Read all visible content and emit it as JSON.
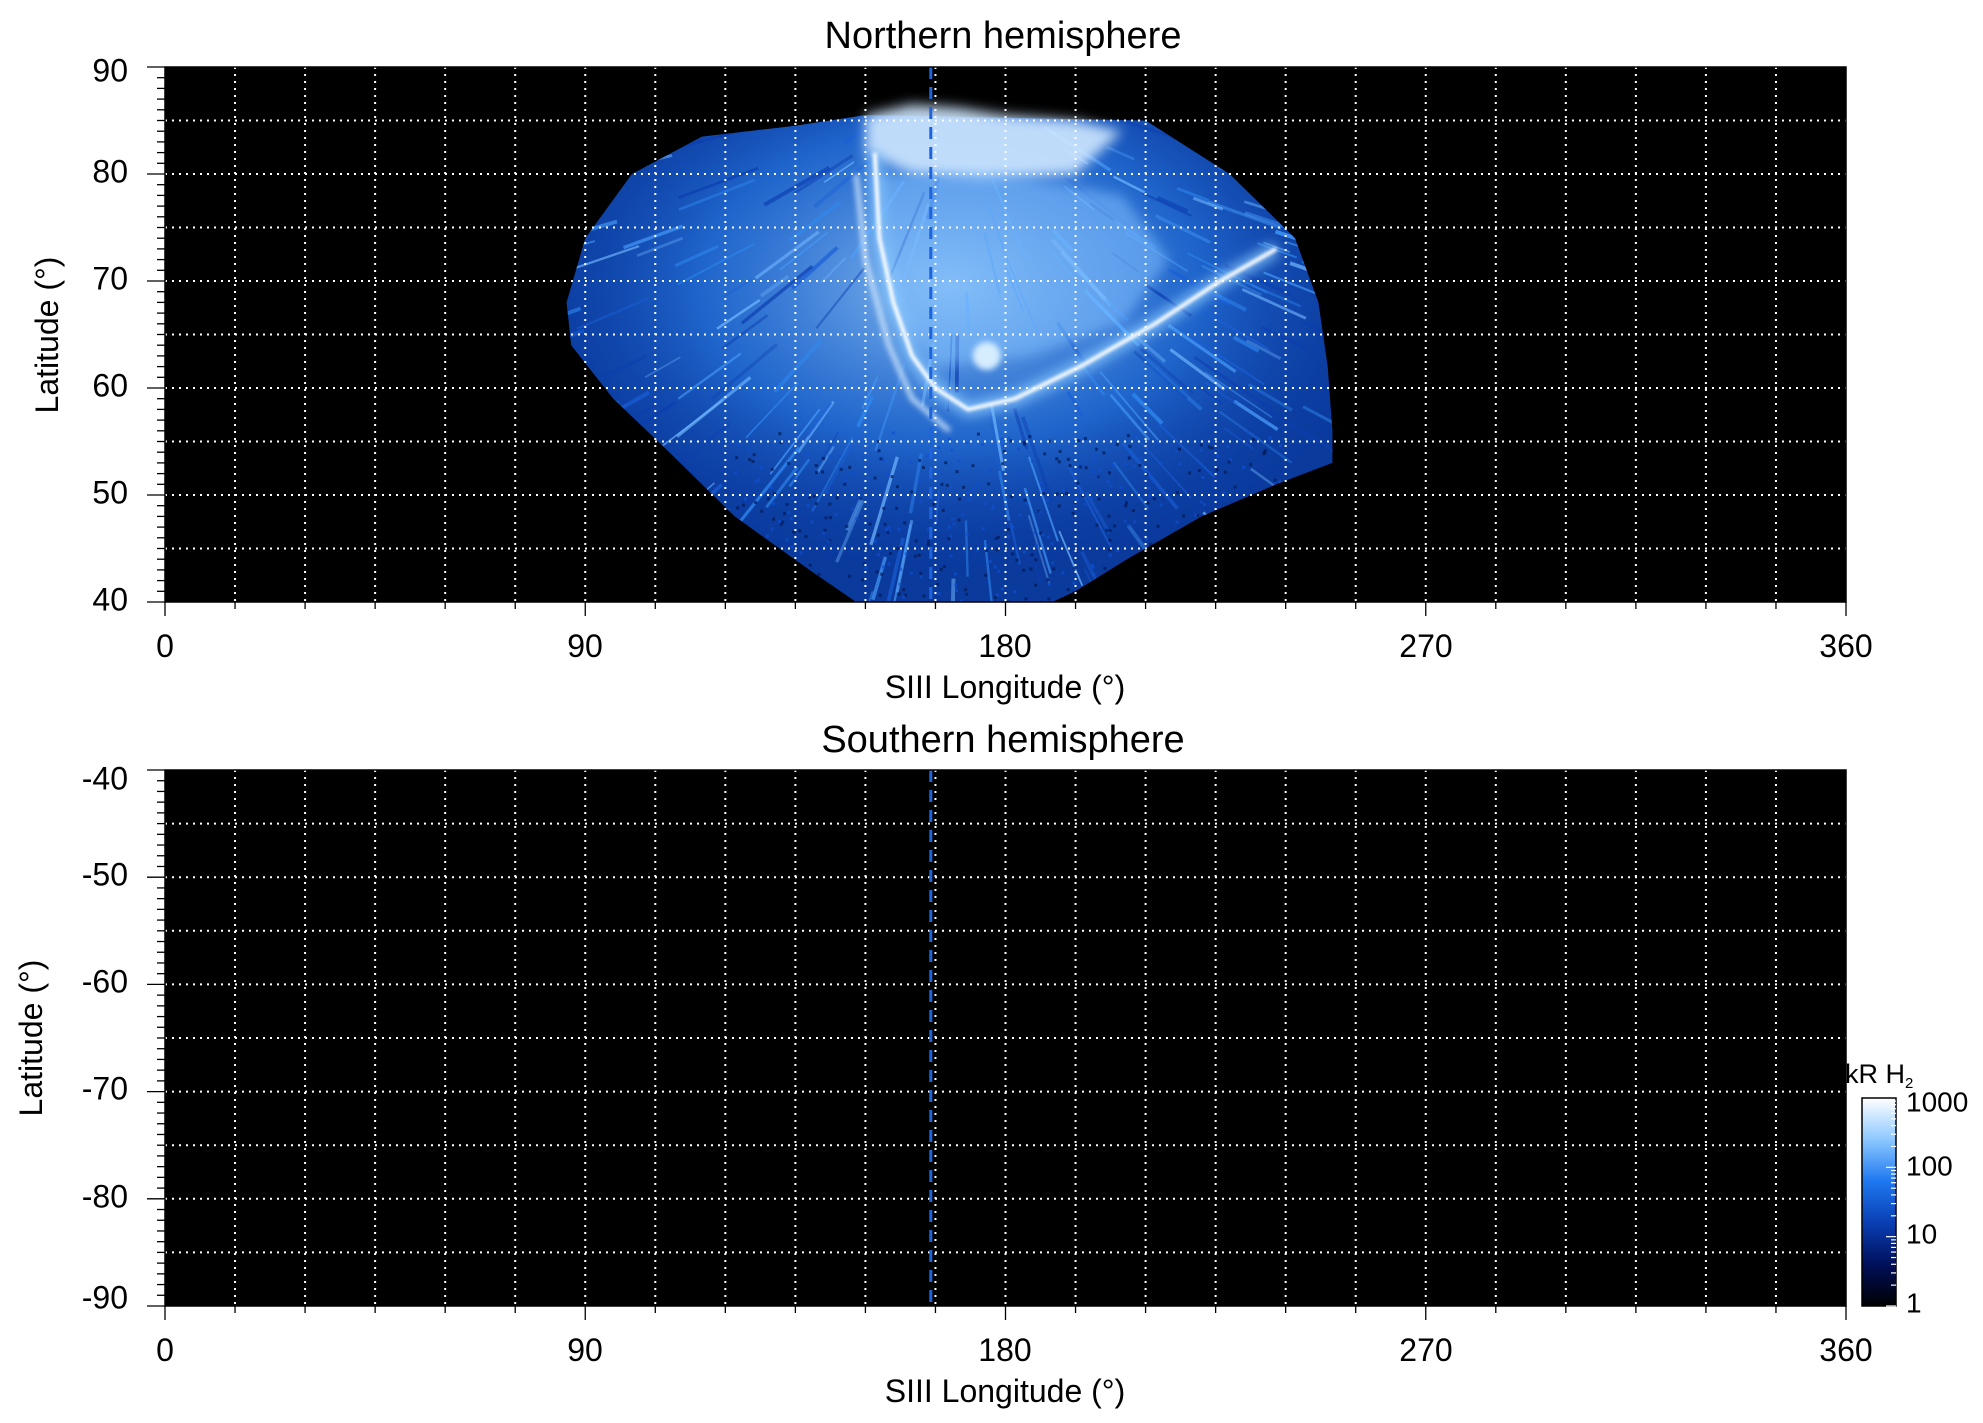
{
  "chart_data": [
    {
      "type": "heatmap",
      "title": "Northern hemisphere",
      "xlabel": "SIII Longitude (°)",
      "ylabel": "Latitude (°)",
      "xlim": [
        0,
        360
      ],
      "ylim": [
        40,
        90
      ],
      "x_ticks": [
        "0",
        "90",
        "180",
        "270",
        "360"
      ],
      "y_ticks": [
        "40",
        "50",
        "60",
        "70",
        "80",
        "90"
      ],
      "x_gridlines": [
        15,
        30,
        45,
        60,
        75,
        90,
        105,
        120,
        135,
        150,
        165,
        180,
        195,
        210,
        225,
        240,
        255,
        270,
        285,
        300,
        315,
        330,
        345
      ],
      "y_gridlines": [
        45,
        50,
        55,
        60,
        65,
        70,
        75,
        80,
        85
      ],
      "grid": true,
      "reference_line_longitude": 164,
      "emission_region": {
        "polar_cap_edge": [
          [
            150,
            85.5
          ],
          [
            160,
            86.5
          ],
          [
            170,
            86.2
          ],
          [
            180,
            85.5
          ],
          [
            195,
            85.0
          ],
          [
            210,
            85.0
          ]
        ],
        "outer_boundary": [
          [
            148,
            40
          ],
          [
            138,
            43
          ],
          [
            122,
            48
          ],
          [
            108,
            54
          ],
          [
            96,
            59
          ],
          [
            87,
            64
          ],
          [
            86,
            68
          ],
          [
            90,
            74
          ],
          [
            100,
            80
          ],
          [
            115,
            83.5
          ],
          [
            135,
            84.5
          ],
          [
            150,
            85.5
          ],
          [
            210,
            85.0
          ],
          [
            228,
            80
          ],
          [
            242,
            74
          ],
          [
            247,
            68
          ],
          [
            249,
            62
          ],
          [
            250,
            56
          ],
          [
            250,
            53
          ],
          [
            238,
            51
          ],
          [
            222,
            48
          ],
          [
            206,
            44
          ],
          [
            195,
            41
          ],
          [
            190,
            40
          ]
        ]
      },
      "main_auroral_oval": [
        [
          152,
          82
        ],
        [
          153,
          74
        ],
        [
          156,
          68
        ],
        [
          160,
          63
        ],
        [
          165,
          60
        ],
        [
          172,
          58
        ],
        [
          182,
          59
        ],
        [
          196,
          62
        ],
        [
          212,
          66
        ],
        [
          226,
          70
        ],
        [
          238,
          73
        ]
      ],
      "secondary_arc": [
        [
          148,
          80
        ],
        [
          150,
          72
        ],
        [
          155,
          64
        ],
        [
          160,
          59
        ],
        [
          168,
          56
        ]
      ]
    },
    {
      "type": "heatmap",
      "title": "Southern hemisphere",
      "xlabel": "SIII Longitude (°)",
      "ylabel": "Latitude (°)",
      "xlim": [
        0,
        360
      ],
      "ylim": [
        -90,
        -40
      ],
      "x_ticks": [
        "0",
        "90",
        "180",
        "270",
        "360"
      ],
      "y_ticks": [
        "-40",
        "-50",
        "-60",
        "-70",
        "-80",
        "-90"
      ],
      "x_gridlines": [
        15,
        30,
        45,
        60,
        75,
        90,
        105,
        120,
        135,
        150,
        165,
        180,
        195,
        210,
        225,
        240,
        255,
        270,
        285,
        300,
        315,
        330,
        345
      ],
      "y_gridlines": [
        -45,
        -50,
        -55,
        -60,
        -65,
        -70,
        -75,
        -80,
        -85
      ],
      "grid": true,
      "reference_line_longitude": 164
    }
  ],
  "colorbar": {
    "label": "kR H",
    "label_subscript": "2",
    "scale": "log",
    "range": [
      1,
      1000
    ],
    "ticks": [
      "1",
      "10",
      "100",
      "1000"
    ],
    "colors": [
      "#000000",
      "#00105a",
      "#0a3fb4",
      "#1e78f0",
      "#8cc8ff",
      "#ffffff"
    ]
  },
  "style": {
    "plot_background": "#000000",
    "grid_color": "#ffffff",
    "reference_line_color": "#1e64dc"
  }
}
